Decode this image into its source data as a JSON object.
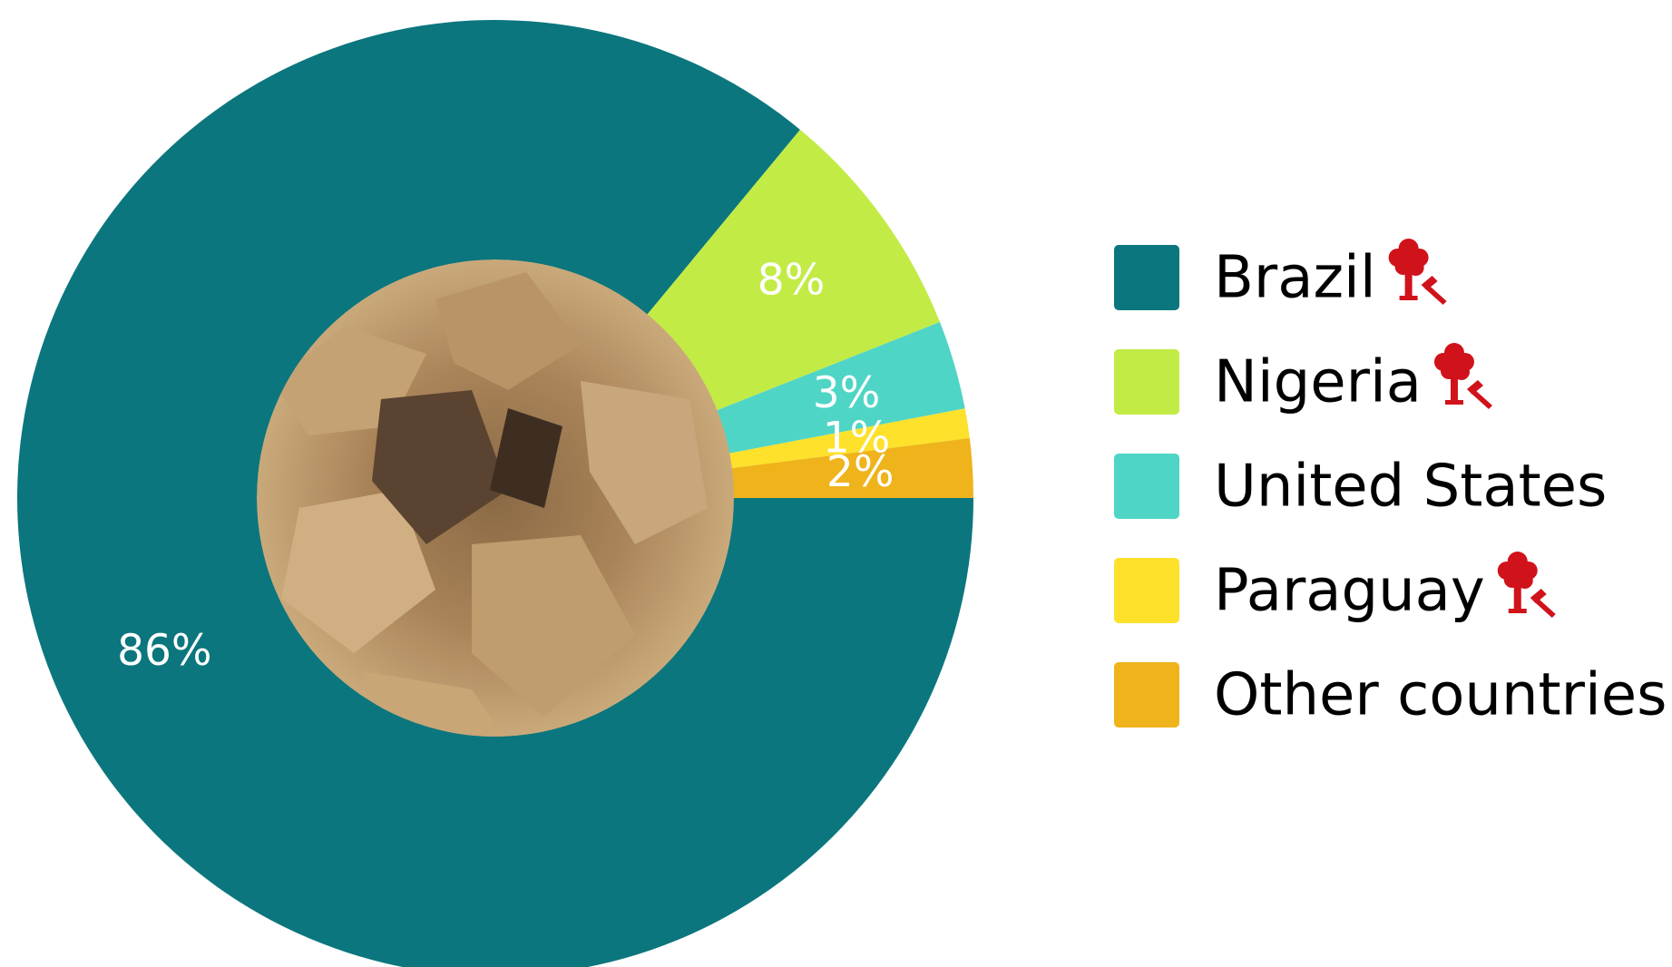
{
  "chart_data": {
    "type": "pie",
    "categories": [
      "Brazil",
      "Nigeria",
      "United States",
      "Paraguay",
      "Other countries"
    ],
    "values": [
      86,
      8,
      3,
      1,
      2
    ],
    "value_labels": [
      "86%",
      "8%",
      "3%",
      "1%",
      "2%"
    ],
    "colors": [
      "#0b767d",
      "#c3eb46",
      "#4fd5c6",
      "#fde12b",
      "#efb31b"
    ],
    "deforestation_icon": [
      true,
      true,
      false,
      true,
      false
    ],
    "icon_color": "#d0121b",
    "direction": "clockwise",
    "start_angle": 0,
    "legend": "right"
  }
}
